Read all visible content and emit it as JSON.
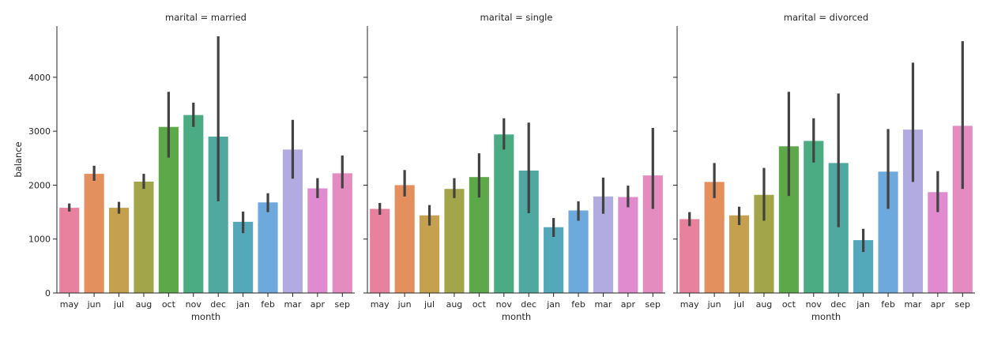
{
  "chart_data": {
    "type": "bar",
    "ylabel": "balance",
    "xlabel": "month",
    "ylim": [
      0,
      5000
    ],
    "yticks": [
      0,
      1000,
      2000,
      3000,
      4000
    ],
    "categories": [
      "may",
      "jun",
      "jul",
      "aug",
      "oct",
      "nov",
      "dec",
      "jan",
      "feb",
      "mar",
      "apr",
      "sep"
    ],
    "colors": [
      "#e8819d",
      "#e4905e",
      "#c4a04f",
      "#a3a54a",
      "#5da849",
      "#4bab83",
      "#50a9a0",
      "#53a8ba",
      "#6da9dc",
      "#b1abe2",
      "#e08ad0",
      "#e48cbf"
    ],
    "panels": [
      {
        "title": "marital = married",
        "values": [
          1580,
          2210,
          1580,
          2065,
          3080,
          3300,
          2900,
          1320,
          1680,
          2660,
          1940,
          2220
        ],
        "ci_low": [
          1510,
          2080,
          1470,
          1930,
          2510,
          3080,
          1700,
          1110,
          1500,
          2120,
          1760,
          1940
        ],
        "ci_high": [
          1660,
          2360,
          1690,
          2210,
          3730,
          3530,
          4760,
          1510,
          1850,
          3210,
          2130,
          2550
        ]
      },
      {
        "title": "marital = single",
        "values": [
          1560,
          2000,
          1440,
          1930,
          2150,
          2940,
          2270,
          1220,
          1530,
          1790,
          1780,
          2180
        ],
        "ci_low": [
          1450,
          1790,
          1250,
          1760,
          1770,
          2660,
          1480,
          1040,
          1340,
          1470,
          1590,
          1560
        ],
        "ci_high": [
          1670,
          2280,
          1630,
          2130,
          2590,
          3240,
          3160,
          1390,
          1700,
          2140,
          1990,
          3060
        ]
      },
      {
        "title": "marital = divorced",
        "values": [
          1370,
          2060,
          1440,
          1820,
          2720,
          2820,
          2410,
          980,
          2250,
          3030,
          1870,
          3100
        ],
        "ci_low": [
          1240,
          1760,
          1260,
          1340,
          1800,
          2420,
          1220,
          760,
          1560,
          2060,
          1500,
          1930
        ],
        "ci_high": [
          1500,
          2410,
          1600,
          2320,
          3730,
          3240,
          3700,
          1190,
          3040,
          4270,
          2260,
          4670
        ]
      }
    ]
  }
}
